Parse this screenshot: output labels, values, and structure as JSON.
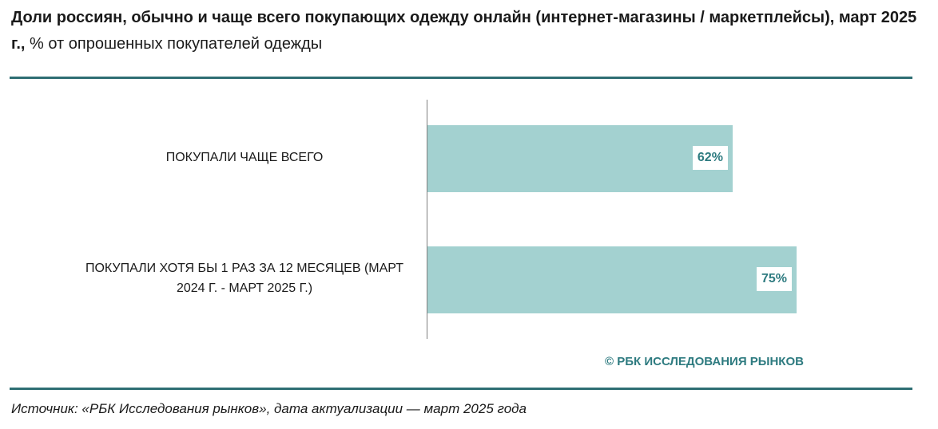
{
  "chart_data": {
    "type": "bar",
    "orientation": "horizontal",
    "title": "Доли россиян, обычно и чаще всего покупающих одежду онлайн (интернет-магазины / маркетплейсы), март 2025 г.,",
    "subtitle": "% от опрошенных покупателей одежды",
    "categories": [
      "ПОКУПАЛИ ЧАЩЕ ВСЕГО",
      "ПОКУПАЛИ ХОТЯ БЫ 1 РАЗ ЗА 12 МЕСЯЦЕВ (МАРТ 2024 Г. - МАРТ 2025 Г.)"
    ],
    "values": [
      62,
      75
    ],
    "value_labels": [
      "62%",
      "75%"
    ],
    "color": "#a3d1d0",
    "watermark": "© РБК ИССЛЕДОВАНИЯ РЫНКОВ",
    "source": "Источник: «РБК Исследования рынков», дата актуализации — март 2025 года"
  }
}
